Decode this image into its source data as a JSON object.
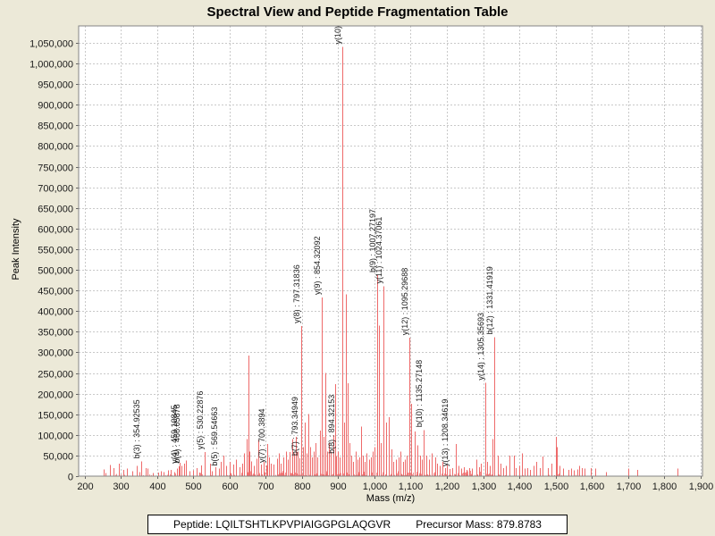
{
  "page": {
    "title": "Spectral View and Peptide Fragmentation Table",
    "background": "#ece9d8"
  },
  "footer": {
    "peptide": "Peptide: LQILTSHTLKPVPIAIGGPGLAQGVR",
    "precursor": "Precursor Mass: 879.8783"
  },
  "chart_data": {
    "type": "bar",
    "subtype": "mass-spectrum-stick-plot",
    "title": "",
    "xlabel": "Mass (m/z)",
    "ylabel": "Peak Intensity",
    "xlim": [
      183,
      1906
    ],
    "ylim": [
      0,
      1091000
    ],
    "xticks": [
      200,
      300,
      400,
      500,
      600,
      700,
      800,
      900,
      1000,
      1100,
      1200,
      1300,
      1400,
      1500,
      1600,
      1700,
      1800,
      1900
    ],
    "ytick_step": 50000,
    "ytick_max": 1050000,
    "grid": true,
    "legend": "none",
    "colors": {
      "peak": "#ee6a6a",
      "grid": "#c9c9c9",
      "plot_border": "#848484",
      "plot_bg": "#ffffff",
      "tick": "#646464",
      "label_text": "#1a1a1a"
    },
    "labeled_peaks": [
      {
        "ion": "b(3)",
        "text": "b(3) : 354.92535",
        "mz": 354.92535,
        "intensity": 36000
      },
      {
        "ion": "y(4)",
        "text": "y(4) : 459.10845",
        "mz": 459.10845,
        "intensity": 24000
      },
      {
        "ion": "b(4)",
        "text": "b(4) : 468.05878",
        "mz": 468.05878,
        "intensity": 25000
      },
      {
        "ion": "y(5)",
        "text": "y(5) : 530.22876",
        "mz": 530.22876,
        "intensity": 58000
      },
      {
        "ion": "b(5)",
        "text": "b(5) : 569.54663",
        "mz": 569.54663,
        "intensity": 18000
      },
      {
        "ion": "y(7)",
        "text": "y(7) : 700.3894",
        "mz": 700.3894,
        "intensity": 26000
      },
      {
        "ion": "b(7)",
        "text": "b(7) : 793.34949",
        "mz": 793.34949,
        "intensity": 43000
      },
      {
        "ion": "y(8)",
        "text": "y(8) : 797.31836",
        "mz": 797.31836,
        "intensity": 364000
      },
      {
        "ion": "y(9)",
        "text": "y(9) : 854.32092",
        "mz": 854.32092,
        "intensity": 433000
      },
      {
        "ion": "b(8)",
        "text": "b(8) : 894.32153",
        "mz": 894.32153,
        "intensity": 48000
      },
      {
        "ion": "y(10)",
        "text": "y(10)",
        "mz": 911.5,
        "intensity": 1040000
      },
      {
        "ion": "b(9)",
        "text": "b(9) : 1007.27197",
        "mz": 1007.27197,
        "intensity": 487000
      },
      {
        "ion": "y(11)",
        "text": "y(11) : 1024.37061",
        "mz": 1024.37061,
        "intensity": 460000
      },
      {
        "ion": "y(12)",
        "text": "y(12) : 1095.29688",
        "mz": 1095.29688,
        "intensity": 335000
      },
      {
        "ion": "b(10)",
        "text": "b(10) : 1135.27148",
        "mz": 1135.27148,
        "intensity": 112000
      },
      {
        "ion": "y(13)",
        "text": "y(13) : 1208.34619",
        "mz": 1208.34619,
        "intensity": 17000
      },
      {
        "ion": "y(14)",
        "text": "y(14) : 1305.35693",
        "mz": 1305.35693,
        "intensity": 226000
      },
      {
        "ion": "b(12)",
        "text": "b(12) : 1331.41919",
        "mz": 1331.41919,
        "intensity": 337000
      }
    ],
    "background_peaks": [
      [
        252,
        16000
      ],
      [
        258,
        8000
      ],
      [
        269,
        27000
      ],
      [
        279,
        20000
      ],
      [
        293,
        30000
      ],
      [
        306,
        15000
      ],
      [
        316,
        18000
      ],
      [
        331,
        12000
      ],
      [
        343,
        25000
      ],
      [
        350,
        10000
      ],
      [
        368,
        20000
      ],
      [
        373,
        18000
      ],
      [
        388,
        8000
      ],
      [
        402,
        9000
      ],
      [
        410,
        12000
      ],
      [
        418,
        10000
      ],
      [
        429,
        14000
      ],
      [
        437,
        15000
      ],
      [
        446,
        10000
      ],
      [
        454,
        18000
      ],
      [
        463,
        33000
      ],
      [
        475,
        30000
      ],
      [
        480,
        38000
      ],
      [
        490,
        12000
      ],
      [
        499,
        14000
      ],
      [
        508,
        20000
      ],
      [
        516,
        9000
      ],
      [
        521,
        26000
      ],
      [
        545,
        30000
      ],
      [
        552,
        12000
      ],
      [
        561,
        22000
      ],
      [
        576,
        35000
      ],
      [
        583,
        50000
      ],
      [
        590,
        25000
      ],
      [
        601,
        35000
      ],
      [
        611,
        28000
      ],
      [
        618,
        40000
      ],
      [
        627,
        22000
      ],
      [
        634,
        30000
      ],
      [
        640,
        55000
      ],
      [
        646,
        90000
      ],
      [
        652,
        292000
      ],
      [
        655,
        60000
      ],
      [
        660,
        36000
      ],
      [
        666,
        25000
      ],
      [
        673,
        42000
      ],
      [
        680,
        88000
      ],
      [
        687,
        28000
      ],
      [
        695,
        35000
      ],
      [
        703,
        78000
      ],
      [
        708,
        45000
      ],
      [
        714,
        30000
      ],
      [
        722,
        28000
      ],
      [
        730,
        42000
      ],
      [
        737,
        55000
      ],
      [
        742,
        30000
      ],
      [
        748,
        45000
      ],
      [
        755,
        60000
      ],
      [
        760,
        40000
      ],
      [
        766,
        58000
      ],
      [
        772,
        90000
      ],
      [
        778,
        55000
      ],
      [
        784,
        95000
      ],
      [
        789,
        60000
      ],
      [
        803,
        70000
      ],
      [
        808,
        130000
      ],
      [
        812,
        55000
      ],
      [
        817,
        150000
      ],
      [
        822,
        70000
      ],
      [
        827,
        45000
      ],
      [
        833,
        60000
      ],
      [
        838,
        80000
      ],
      [
        843,
        45000
      ],
      [
        849,
        110000
      ],
      [
        860,
        95000
      ],
      [
        864,
        250000
      ],
      [
        869,
        60000
      ],
      [
        875,
        80000
      ],
      [
        880,
        60000
      ],
      [
        886,
        100000
      ],
      [
        891,
        223000
      ],
      [
        898,
        60000
      ],
      [
        903,
        45000
      ],
      [
        916,
        130000
      ],
      [
        921,
        440000
      ],
      [
        925,
        225000
      ],
      [
        930,
        80000
      ],
      [
        936,
        50000
      ],
      [
        941,
        35000
      ],
      [
        948,
        60000
      ],
      [
        953,
        40000
      ],
      [
        958,
        45000
      ],
      [
        962,
        120000
      ],
      [
        968,
        50000
      ],
      [
        973,
        35000
      ],
      [
        979,
        55000
      ],
      [
        985,
        40000
      ],
      [
        991,
        45000
      ],
      [
        995,
        60000
      ],
      [
        1000,
        70000
      ],
      [
        1013,
        365000
      ],
      [
        1018,
        80000
      ],
      [
        1032,
        130000
      ],
      [
        1039,
        143000
      ],
      [
        1046,
        65000
      ],
      [
        1053,
        35000
      ],
      [
        1060,
        40000
      ],
      [
        1066,
        45000
      ],
      [
        1072,
        60000
      ],
      [
        1078,
        35000
      ],
      [
        1084,
        40000
      ],
      [
        1090,
        50000
      ],
      [
        1101,
        175000
      ],
      [
        1110,
        108000
      ],
      [
        1118,
        75000
      ],
      [
        1125,
        50000
      ],
      [
        1130,
        40000
      ],
      [
        1143,
        50000
      ],
      [
        1150,
        40000
      ],
      [
        1157,
        55000
      ],
      [
        1167,
        45000
      ],
      [
        1174,
        30000
      ],
      [
        1180,
        25000
      ],
      [
        1187,
        35000
      ],
      [
        1194,
        20000
      ],
      [
        1200,
        28000
      ],
      [
        1215,
        20000
      ],
      [
        1224,
        78000
      ],
      [
        1232,
        25000
      ],
      [
        1240,
        18000
      ],
      [
        1247,
        22000
      ],
      [
        1255,
        15000
      ],
      [
        1262,
        20000
      ],
      [
        1270,
        18000
      ],
      [
        1281,
        40000
      ],
      [
        1288,
        22000
      ],
      [
        1295,
        30000
      ],
      [
        1311,
        35000
      ],
      [
        1318,
        25000
      ],
      [
        1325,
        90000
      ],
      [
        1340,
        50000
      ],
      [
        1348,
        30000
      ],
      [
        1355,
        20000
      ],
      [
        1364,
        25000
      ],
      [
        1372,
        50000
      ],
      [
        1385,
        50000
      ],
      [
        1391,
        20000
      ],
      [
        1400,
        25000
      ],
      [
        1408,
        55000
      ],
      [
        1414,
        18000
      ],
      [
        1422,
        20000
      ],
      [
        1430,
        15000
      ],
      [
        1439,
        25000
      ],
      [
        1448,
        35000
      ],
      [
        1457,
        20000
      ],
      [
        1464,
        48000
      ],
      [
        1478,
        20000
      ],
      [
        1490,
        30000
      ],
      [
        1500,
        95000
      ],
      [
        1503,
        70000
      ],
      [
        1512,
        25000
      ],
      [
        1520,
        18000
      ],
      [
        1535,
        15000
      ],
      [
        1542,
        18000
      ],
      [
        1550,
        14000
      ],
      [
        1560,
        16000
      ],
      [
        1565,
        25000
      ],
      [
        1572,
        20000
      ],
      [
        1580,
        18000
      ],
      [
        1597,
        20000
      ],
      [
        1610,
        18000
      ],
      [
        1640,
        10000
      ],
      [
        1700,
        18000
      ],
      [
        1727,
        15000
      ],
      [
        1838,
        18000
      ]
    ],
    "noise": {
      "seed": 13,
      "count": 300,
      "mz_min": 250,
      "mz_max": 1560,
      "dense_min": 590,
      "dense_max": 1360,
      "amp_dense": 13000,
      "amp_sparse": 7000
    }
  }
}
